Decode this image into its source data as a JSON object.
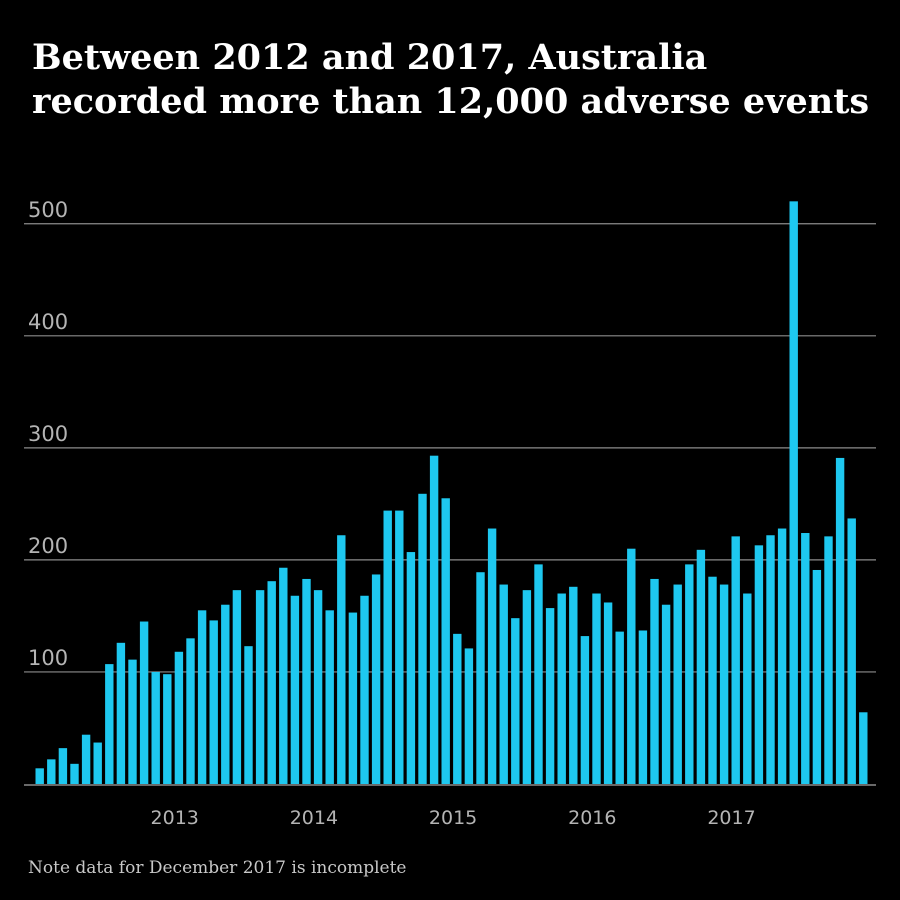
{
  "title_lines": [
    "Between 2012 and 2017, Australia",
    "recorded more than 12,000 adverse events"
  ],
  "note": "Note data for December 2017 is incomplete",
  "colors": {
    "background": "#000000",
    "bar": "#1ec8f0",
    "grid": "#8c8c8c",
    "tick": "#b4b4b4",
    "title": "#ffffff"
  },
  "chart_data": {
    "type": "bar",
    "title": "Between 2012 and 2017, Australia recorded more than 12,000 adverse events",
    "xlabel": "",
    "ylabel": "",
    "ylim": [
      0,
      510
    ],
    "yticks": [
      100,
      200,
      300,
      400,
      500
    ],
    "xtick_labels": [
      {
        "label": "2013",
        "index": 12
      },
      {
        "label": "2014",
        "index": 24
      },
      {
        "label": "2015",
        "index": 36
      },
      {
        "label": "2016",
        "index": 48
      },
      {
        "label": "2017",
        "index": 60
      }
    ],
    "grid": true,
    "legend": "none",
    "start_month": "2012-01",
    "values": [
      14,
      22,
      32,
      18,
      44,
      37,
      107,
      126,
      111,
      145,
      100,
      98,
      118,
      130,
      155,
      146,
      160,
      173,
      123,
      173,
      181,
      193,
      168,
      183,
      173,
      155,
      222,
      153,
      168,
      187,
      244,
      244,
      207,
      259,
      293,
      255,
      134,
      121,
      189,
      228,
      178,
      148,
      173,
      196,
      157,
      170,
      176,
      132,
      170,
      162,
      136,
      210,
      137,
      183,
      160,
      178,
      196,
      209,
      185,
      178,
      221,
      170,
      213,
      222,
      228,
      520,
      224,
      191,
      221,
      291,
      237,
      64
    ]
  }
}
